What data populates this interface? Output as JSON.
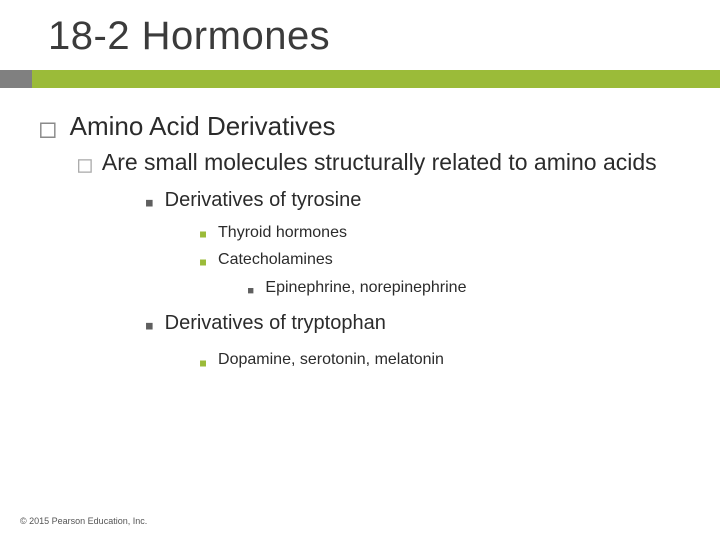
{
  "title": "18-2 Hormones",
  "accent": {
    "small_color": "#808080",
    "big_color": "#9bbb39"
  },
  "content": {
    "l1": {
      "text": "Amino Acid Derivatives",
      "fontsize": 26,
      "bullet": "□",
      "bullet_color": "#8a8a8a",
      "indent": 0,
      "gap": 14,
      "line_h": 1.3
    },
    "l2": {
      "prefix": "Are",
      "text": " small molecules structurally related to amino acids",
      "fontsize": 23,
      "bullet": "□",
      "bullet_color": "#a9a9a9",
      "indent": 38,
      "gap": 10,
      "line_h": 1.35
    },
    "l3a": {
      "text": "Derivatives of tyrosine",
      "fontsize": 20,
      "bullet": "■",
      "bullet_color": "#5f5f5f",
      "indent": 106,
      "gap": 12,
      "line_h": 1.9,
      "bullet_fs": 11
    },
    "l4a": {
      "text": "Thyroid hormones",
      "fontsize": 16,
      "bullet": "■",
      "bullet_color": "#9bbb39",
      "indent": 160,
      "gap": 12,
      "line_h": 1.7,
      "bullet_fs": 10
    },
    "l4b": {
      "text": "Catecholamines",
      "fontsize": 16,
      "bullet": "■",
      "bullet_color": "#9bbb39",
      "indent": 160,
      "gap": 12,
      "line_h": 1.7,
      "bullet_fs": 10
    },
    "l5a": {
      "text": "Epinephrine, norepinephrine",
      "fontsize": 16,
      "bullet": "■",
      "bullet_color": "#5f5f5f",
      "indent": 208,
      "gap": 12,
      "line_h": 1.9,
      "bullet_fs": 9
    },
    "l3b": {
      "text": "Derivatives of tryptophan",
      "fontsize": 20,
      "bullet": "■",
      "bullet_color": "#5f5f5f",
      "indent": 106,
      "gap": 12,
      "line_h": 1.9,
      "bullet_fs": 11
    },
    "l4c": {
      "text": "Dopamine, serotonin, melatonin",
      "fontsize": 16,
      "bullet": "■",
      "bullet_color": "#9bbb39",
      "indent": 160,
      "gap": 12,
      "line_h": 2.2,
      "bullet_fs": 10
    }
  },
  "copyright": "© 2015 Pearson Education, Inc."
}
